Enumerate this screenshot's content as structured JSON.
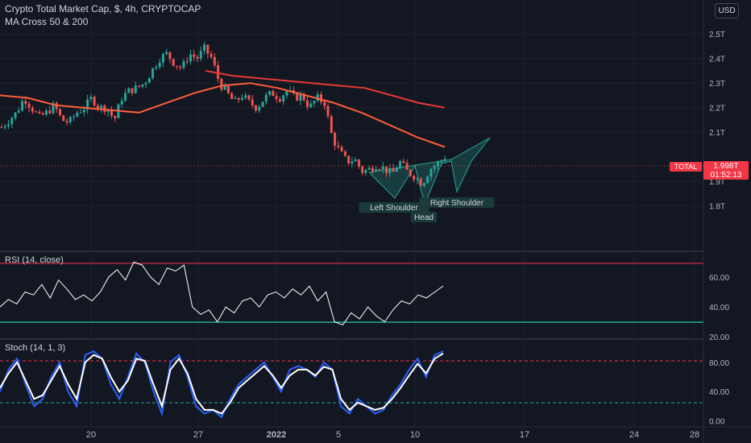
{
  "header": {
    "title": "Crypto Total Market Cap, $, 4h, CRYPTOCAP",
    "indicator": "MA Cross 50 & 200",
    "currency": "USD"
  },
  "price_tag": {
    "symbol": "TOTAL",
    "price": "1.998T",
    "countdown": "01:52:13"
  },
  "panes": {
    "rsi_label": "RSI (14, close)",
    "stoch_label": "Stoch (14, 1, 3)"
  },
  "colors": {
    "background": "#131722",
    "bull": "#26a69a",
    "bear": "#ef5350",
    "ma_fast": "#ff5d3a",
    "ma_slow": "#e53935",
    "rsi": "#ffffff",
    "stoch_k": "#2962ff",
    "stoch_d": "#ffffff",
    "pattern": "#26a69a"
  },
  "chart_data": [
    {
      "type": "candlestick",
      "title": "Crypto Total Market Cap, $, 4h, CRYPTOCAP",
      "y_unit": "T",
      "yticks": [
        "2.5T",
        "2.4T",
        "2.3T",
        "2.2T",
        "2.1T",
        "1.9T",
        "1.8T"
      ],
      "ylim": [
        1.73,
        2.54
      ],
      "xticks": [
        "20",
        "27",
        "2022",
        "5",
        "10",
        "17",
        "24",
        "28"
      ],
      "close_path": [
        2.12,
        2.15,
        2.18,
        2.24,
        2.2,
        2.16,
        2.18,
        2.21,
        2.15,
        2.14,
        2.18,
        2.2,
        2.24,
        2.2,
        2.2,
        2.15,
        2.24,
        2.27,
        2.28,
        2.3,
        2.35,
        2.4,
        2.42,
        2.38,
        2.36,
        2.42,
        2.4,
        2.44,
        2.4,
        2.3,
        2.26,
        2.22,
        2.25,
        2.22,
        2.2,
        2.24,
        2.26,
        2.24,
        2.27,
        2.24,
        2.25,
        2.2,
        2.24,
        2.22,
        2.08,
        2.02,
        1.98,
        1.99,
        1.94,
        1.95,
        1.97,
        1.95,
        1.93,
        1.98,
        1.94,
        1.92,
        1.89,
        1.95,
        1.97,
        2.0
      ],
      "ma_50": [
        2.25,
        2.24,
        2.21,
        2.2,
        2.19,
        2.18,
        2.22,
        2.26,
        2.29,
        2.3,
        2.28,
        2.25,
        2.22,
        2.18,
        2.13,
        2.08,
        2.04
      ],
      "ma_200": [
        2.35,
        2.33,
        2.32,
        2.31,
        2.3,
        2.29,
        2.28,
        2.25,
        2.22,
        2.2
      ],
      "last_price": "1.998T",
      "pattern": {
        "name": "Head and Shoulders (inverse)",
        "labels": [
          "Left Shoulder",
          "Head",
          "Right Shoulder"
        ]
      }
    },
    {
      "type": "line",
      "name": "RSI (14, close)",
      "yticks": [
        "60.00",
        "40.00",
        "20.00"
      ],
      "ylim": [
        19,
        74
      ],
      "bands": [
        70,
        30
      ],
      "values": [
        40,
        45,
        42,
        50,
        48,
        55,
        46,
        58,
        52,
        45,
        48,
        44,
        50,
        60,
        65,
        58,
        70,
        68,
        60,
        55,
        66,
        64,
        68,
        40,
        35,
        38,
        30,
        40,
        36,
        44,
        46,
        40,
        48,
        50,
        46,
        52,
        48,
        54,
        44,
        50,
        30,
        28,
        36,
        32,
        40,
        34,
        30,
        38,
        44,
        42,
        48,
        46,
        50,
        54
      ]
    },
    {
      "type": "line",
      "name": "Stoch (14, 1, 3)",
      "yticks": [
        "80.00",
        "40.00",
        "0.00"
      ],
      "ylim": [
        -6,
        104
      ],
      "bands": [
        80,
        20
      ],
      "k_values": [
        40,
        70,
        85,
        50,
        20,
        30,
        60,
        80,
        40,
        20,
        90,
        95,
        85,
        50,
        30,
        60,
        92,
        80,
        40,
        10,
        80,
        90,
        60,
        20,
        10,
        15,
        5,
        30,
        50,
        60,
        70,
        80,
        60,
        40,
        70,
        75,
        70,
        60,
        80,
        70,
        20,
        10,
        30,
        20,
        10,
        15,
        35,
        50,
        70,
        85,
        60,
        90,
        95
      ],
      "d_values": [
        45,
        65,
        80,
        55,
        30,
        35,
        55,
        75,
        50,
        30,
        80,
        90,
        85,
        60,
        40,
        55,
        85,
        82,
        50,
        20,
        70,
        85,
        65,
        30,
        15,
        15,
        10,
        25,
        45,
        55,
        65,
        75,
        62,
        45,
        62,
        70,
        70,
        62,
        74,
        70,
        30,
        15,
        25,
        20,
        15,
        18,
        30,
        45,
        62,
        78,
        65,
        85,
        92
      ]
    }
  ]
}
